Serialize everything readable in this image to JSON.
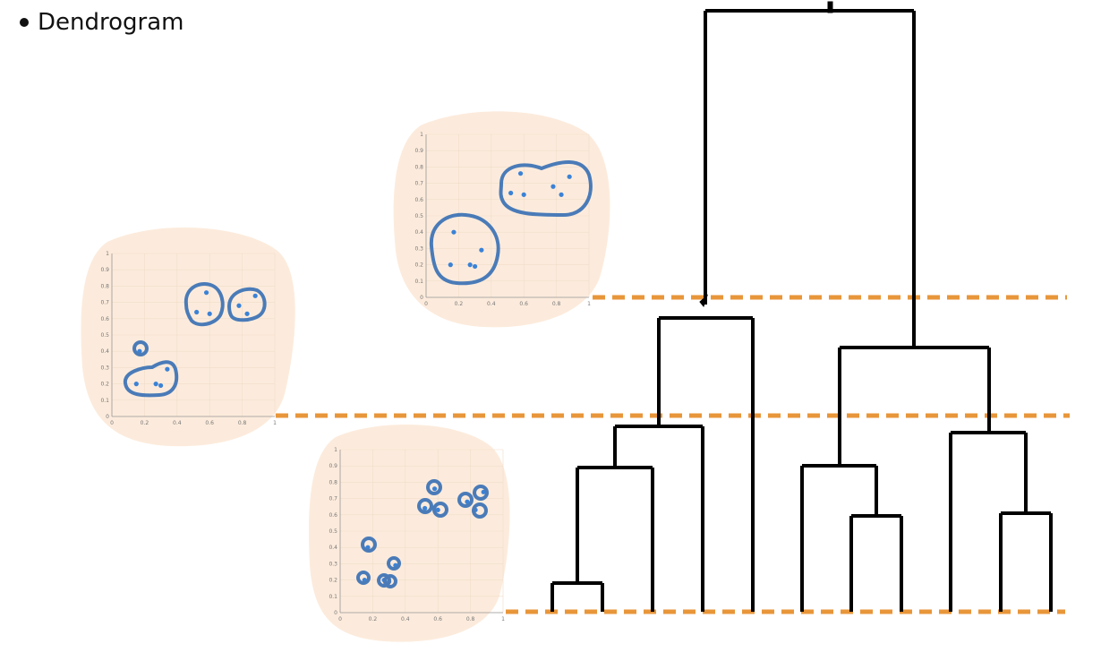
{
  "slide": {
    "bullet": "Dendrogram"
  },
  "colors": {
    "background": "#ffffff",
    "blob": "#fcebdc",
    "cluster_outline": "#4a7bb8",
    "point": "#3b82d6",
    "cut_line": "#e8963a",
    "tree": "#000000"
  },
  "scatter_axes": {
    "x_ticks": [
      "0",
      "0.2",
      "0.4",
      "0.6",
      "0.8",
      "1"
    ],
    "y_ticks": [
      "0",
      "0.1",
      "0.2",
      "0.3",
      "0.4",
      "0.5",
      "0.6",
      "0.7",
      "0.8",
      "0.9",
      "1"
    ]
  },
  "points": [
    {
      "x": 0.15,
      "y": 0.2
    },
    {
      "x": 0.17,
      "y": 0.4
    },
    {
      "x": 0.27,
      "y": 0.2
    },
    {
      "x": 0.3,
      "y": 0.19
    },
    {
      "x": 0.34,
      "y": 0.29
    },
    {
      "x": 0.52,
      "y": 0.64
    },
    {
      "x": 0.58,
      "y": 0.76
    },
    {
      "x": 0.6,
      "y": 0.63
    },
    {
      "x": 0.78,
      "y": 0.68
    },
    {
      "x": 0.83,
      "y": 0.63
    },
    {
      "x": 0.88,
      "y": 0.74
    }
  ],
  "cut_levels": [
    {
      "name": "two-clusters",
      "clusters": 2
    },
    {
      "name": "four-clusters",
      "clusters": 4
    },
    {
      "name": "singleton-clusters",
      "clusters": 11
    }
  ]
}
